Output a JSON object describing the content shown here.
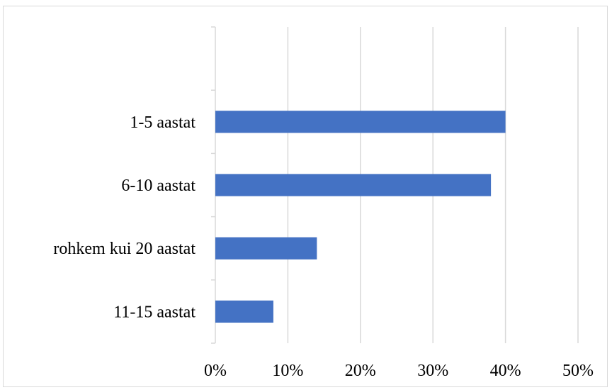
{
  "chart_data": {
    "type": "bar",
    "orientation": "horizontal",
    "categories": [
      "1-5 aastat",
      "6-10 aastat",
      "rohkem kui 20 aastat",
      "11-15 aastat"
    ],
    "values": [
      40,
      38,
      14,
      8
    ],
    "value_unit": "%",
    "xlim": [
      0,
      50
    ],
    "x_ticks": [
      "0%",
      "10%",
      "20%",
      "30%",
      "40%",
      "50%"
    ],
    "grid": "vertical",
    "legend": "none",
    "bar_color": "#4472c4",
    "grid_color": "#d9d9d9",
    "title": "",
    "xlabel": "",
    "ylabel": ""
  }
}
